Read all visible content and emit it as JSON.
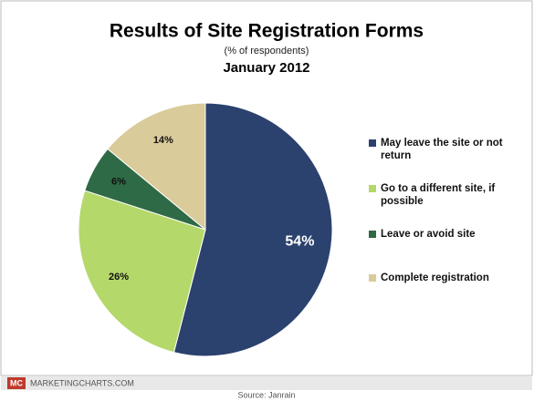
{
  "chart_data": {
    "type": "pie",
    "title": "Results of Site Registration Forms",
    "subtitle": "(% of respondents)",
    "date": "January 2012",
    "categories": [
      "May leave the site or not return",
      "Go to a different site, if possible",
      "Leave or avoid site",
      "Complete registration"
    ],
    "values": [
      54,
      26,
      6,
      14
    ],
    "value_labels": [
      "54%",
      "26%",
      "6%",
      "14%"
    ],
    "colors": [
      "#2b416e",
      "#b5d86a",
      "#2e6a45",
      "#dacb9b"
    ],
    "legend": "right"
  },
  "footer": {
    "logo": "MC",
    "site": "MARKETINGCHARTS.COM",
    "source": "Source: Janrain"
  }
}
